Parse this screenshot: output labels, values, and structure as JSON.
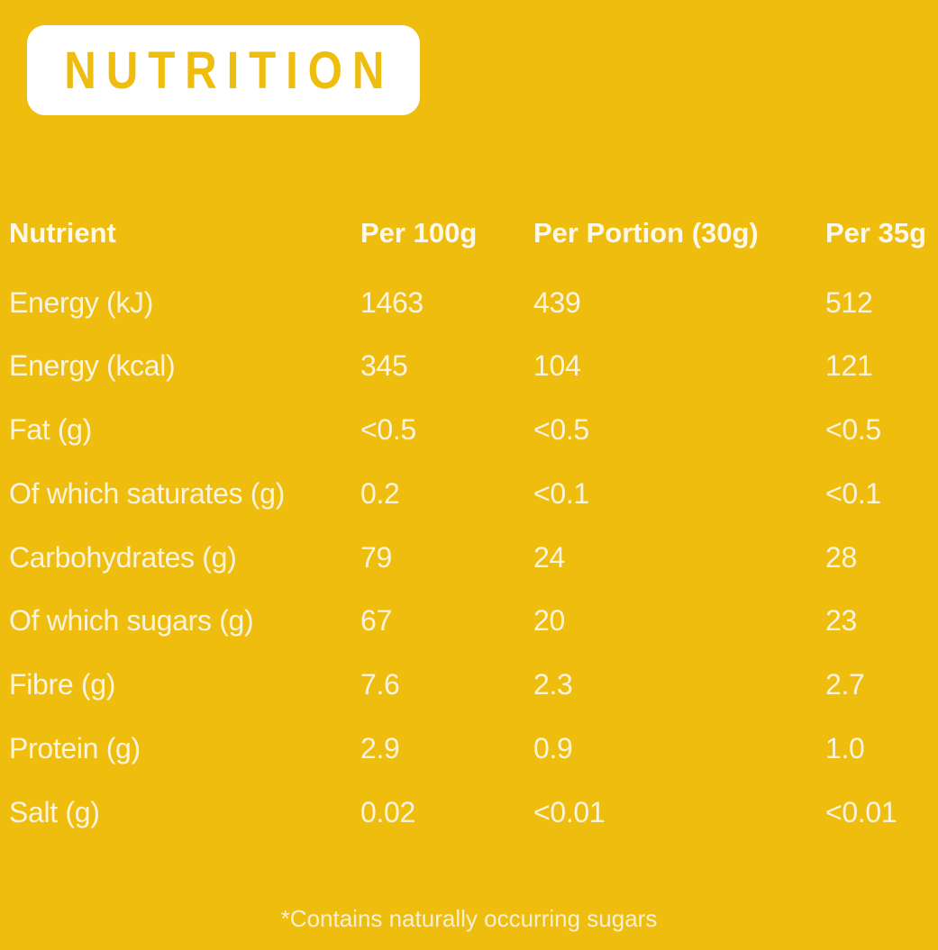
{
  "title": "NUTRITION",
  "colors": {
    "background": "#EEBD0E",
    "title_box": "#FFFFFF",
    "title_text": "#EEBD0E",
    "body_text": "#FBF3DC"
  },
  "table": {
    "headers": [
      "Nutrient",
      "Per 100g",
      "Per Portion (30g)",
      "Per 35g"
    ],
    "rows": [
      {
        "label": "Energy (kJ)",
        "values": [
          "1463",
          "439",
          "512"
        ]
      },
      {
        "label": "Energy (kcal)",
        "values": [
          "345",
          "104",
          "121"
        ]
      },
      {
        "label": "Fat (g)",
        "values": [
          "<0.5",
          "<0.5",
          "<0.5"
        ]
      },
      {
        "label": "Of which saturates (g)",
        "values": [
          "0.2",
          "<0.1",
          "<0.1"
        ]
      },
      {
        "label": "Carbohydrates (g)",
        "values": [
          "79",
          "24",
          "28"
        ]
      },
      {
        "label": "Of which sugars (g)",
        "values": [
          "67",
          "20",
          "23"
        ]
      },
      {
        "label": "Fibre (g)",
        "values": [
          "7.6",
          "2.3",
          "2.7"
        ]
      },
      {
        "label": "Protein (g)",
        "values": [
          "2.9",
          "0.9",
          "1.0"
        ]
      },
      {
        "label": "Salt (g)",
        "values": [
          "0.02",
          "<0.01",
          "<0.01"
        ]
      }
    ]
  },
  "footnote": "*Contains naturally occurring sugars"
}
